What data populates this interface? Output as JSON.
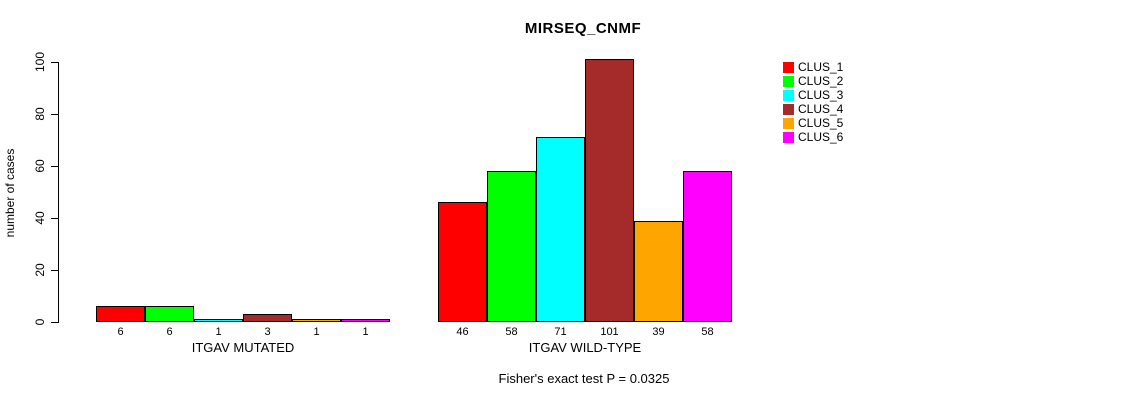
{
  "chart_data": {
    "type": "bar",
    "title": "MIRSEQ_CNMF",
    "ylabel": "number of cases",
    "ylim": [
      0,
      100
    ],
    "yticks": [
      0,
      20,
      40,
      60,
      80,
      100
    ],
    "grid": false,
    "legend_position": "right",
    "groups": [
      {
        "label": "ITGAV MUTATED",
        "values": [
          6,
          6,
          1,
          3,
          1,
          1
        ]
      },
      {
        "label": "ITGAV WILD-TYPE",
        "values": [
          46,
          58,
          71,
          101,
          39,
          58
        ]
      }
    ],
    "series_colors": [
      "#ff0000",
      "#00ff00",
      "#00ffff",
      "#a52a2a",
      "#ffa500",
      "#ff00ff"
    ],
    "legend": [
      {
        "label": "CLUS_1",
        "color": "#ff0000"
      },
      {
        "label": "CLUS_2",
        "color": "#00ff00"
      },
      {
        "label": "CLUS_3",
        "color": "#00ffff"
      },
      {
        "label": "CLUS_4",
        "color": "#a52a2a"
      },
      {
        "label": "CLUS_5",
        "color": "#ffa500"
      },
      {
        "label": "CLUS_6",
        "color": "#ff00ff"
      }
    ],
    "annotation": "Fisher's exact test P = 0.0325"
  }
}
